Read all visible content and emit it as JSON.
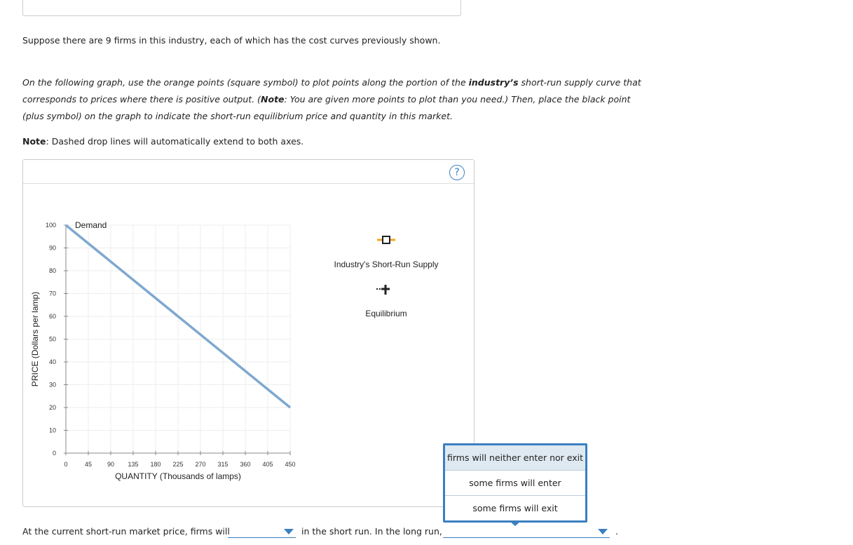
{
  "intro": "Suppose there are 9 firms in this industry, each of which has the cost curves previously shown.",
  "instruction": {
    "part1": "On the following graph, use the orange points (square symbol) to plot points along the portion of the ",
    "bold1": "industry’s",
    "part2": " short-run supply curve that corresponds to prices where there is positive output. (",
    "bold2": "Note",
    "part3": ": You are given more points to plot than you need.) Then, place the black point (plus symbol) on the graph to indicate the short-run equilibrium price and quantity in this market."
  },
  "note": {
    "label": "Note",
    "text": ": Dashed drop lines will automatically extend to both axes."
  },
  "help": "?",
  "palette": {
    "supply": "Industry's Short-Run Supply",
    "equilibrium": "Equilibrium"
  },
  "chart_data": {
    "type": "line",
    "x_label": "QUANTITY (Thousands of lamps)",
    "y_label": "PRICE (Dollars per lamp)",
    "xlim": [
      0,
      450
    ],
    "ylim": [
      0,
      100
    ],
    "xticks": [
      0,
      45,
      90,
      135,
      180,
      225,
      270,
      315,
      360,
      405,
      450
    ],
    "yticks": [
      0,
      10,
      20,
      30,
      40,
      50,
      60,
      70,
      80,
      90,
      100
    ],
    "grid": true,
    "series": [
      {
        "name": "Demand",
        "color": "#7fa8cf",
        "x": [
          0,
          450
        ],
        "values": [
          100,
          20
        ]
      }
    ]
  },
  "question": {
    "before": "At the current short-run market price, firms will",
    "middle": "in the short run. In the long run,",
    "end": "."
  },
  "dropdown": {
    "options": [
      "firms will neither enter nor exit",
      "some firms will enter",
      "some firms will exit"
    ]
  }
}
